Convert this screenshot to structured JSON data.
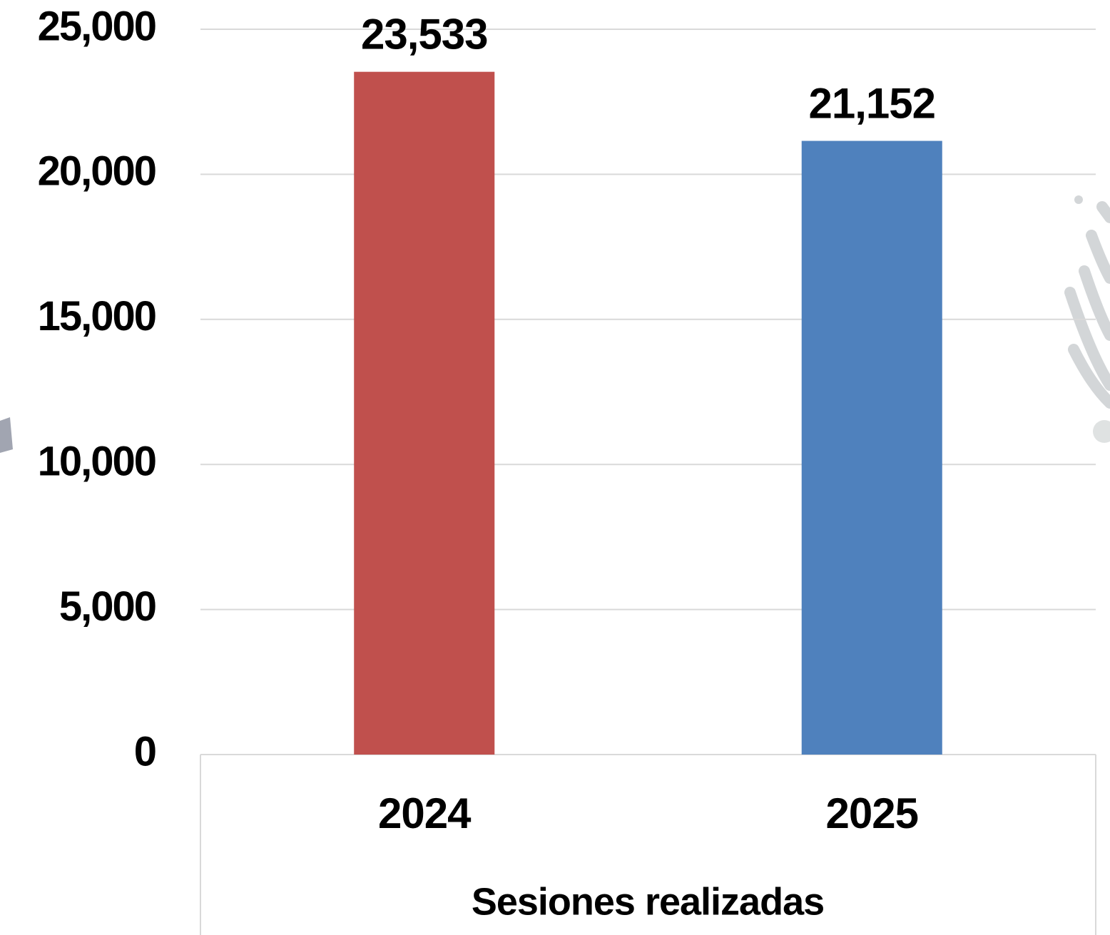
{
  "chart_data": {
    "type": "bar",
    "categories": [
      "2024",
      "2025"
    ],
    "values": [
      23533,
      21152
    ],
    "value_labels": [
      "23,533",
      "21,152"
    ],
    "colors": [
      "#c0504d",
      "#4f81bd"
    ],
    "x_label": "Sesiones realizadas",
    "ylim": [
      0,
      25000
    ],
    "yticks": [
      0,
      {
        "value": 5000,
        "label": "5,000"
      },
      {
        "value": 10000,
        "label": "10,000"
      },
      {
        "value": 15000,
        "label": "15,000"
      },
      {
        "value": 20000,
        "label": "20,000"
      },
      {
        "value": 25000,
        "label": "25,000"
      }
    ],
    "grid": true
  }
}
